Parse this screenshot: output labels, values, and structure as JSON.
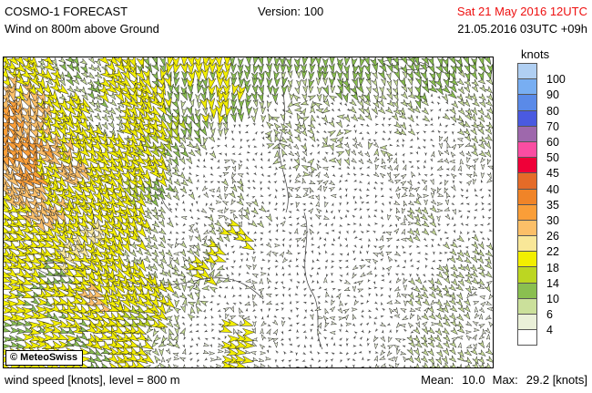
{
  "header": {
    "title": "COSMO-1 FORECAST",
    "subtitle": "Wind on 800m above Ground",
    "version": "Version: 100",
    "valid_date": "Sat 21 May 2016 12UTC",
    "valid_date_color": "#ee1010",
    "run_info": "21.05.2016 03UTC +09h"
  },
  "legend": {
    "title": "knots",
    "entries": [
      {
        "color": "#b0cff2",
        "label": "100"
      },
      {
        "color": "#78aef2",
        "label": "90"
      },
      {
        "color": "#5a8ae8",
        "label": "80"
      },
      {
        "color": "#4a5ae0",
        "label": "70"
      },
      {
        "color": "#9e68ac",
        "label": "60"
      },
      {
        "color": "#fa4da2",
        "label": "50"
      },
      {
        "color": "#ef0038",
        "label": "45"
      },
      {
        "color": "#e56b28",
        "label": "40"
      },
      {
        "color": "#f08428",
        "label": "35"
      },
      {
        "color": "#fa9e38",
        "label": "30"
      },
      {
        "color": "#fcbf68",
        "label": "26"
      },
      {
        "color": "#f9e798",
        "label": "22"
      },
      {
        "color": "#f2ee00",
        "label": "18"
      },
      {
        "color": "#bcd622",
        "label": "14"
      },
      {
        "color": "#8abf50",
        "label": "10"
      },
      {
        "color": "#cbe09b",
        "label": "6"
      },
      {
        "color": "#eaf0d8",
        "label": "4"
      },
      {
        "color": "#ffffff",
        "label": ""
      }
    ]
  },
  "map": {
    "copyright": "© MeteoSwiss",
    "background": "#ffffff",
    "border_color": "#000000",
    "line_color": "#3c3c3c",
    "palette": {
      "W": "#4a4a4a",
      "p": "#eaf0d8",
      "g": "#cbe09b",
      "G": "#8abf50",
      "L": "#bcd622",
      "Y": "#f2ee00",
      "P": "#f9e798",
      "T": "#fcbf68",
      "O": "#fa9e38"
    },
    "sizes": {
      "W": 4.2,
      "p": 6,
      "g": 8,
      "G": 10,
      "L": 11.5,
      "Y": 13,
      "P": 13.5,
      "T": 14.5,
      "O": 15.5
    },
    "dir_angles": {
      "0": 8,
      "1": 28,
      "2": 48,
      "3": 68,
      "4": 90
    },
    "grid": {
      "cols": 24,
      "rows": 15,
      "speed": [
        "YYgGgYYGYYYGGGGGGGGGGGGG",
        "TYYgGYYYGGYYGGggGGggGGgg",
        "OTYYggYYGgYGgWggWggggWgg",
        "OTYYYgYYLGgWWggWgWWgWWgg",
        "OOTYYYYLGgWWWgpWgpgWWppg",
        "TOYTYYYYgWWpWWgpWWppWWpp",
        "TTYYYYLGgWpgWWppWWWpppWW",
        "YTTYYYYgWWppgWWpWWWpgpWW",
        "YYYYPYYgWpgYWWpWWWWpgWWW",
        "YYYPYYggpgYWWpWWWWpWWWgg",
        "YYGYYYYggYgWpWWWWpWWWggg",
        "YGYYTYYYggWWpWWWpWWpgggp",
        "YYGYYYLYgWWpWWWppWWppggp",
        "GYYGYYYggWWYppWWWWpWggpp",
        "YYYYGYYgpWpYpWWWWWppgggg"
      ],
      "dir": [
        "222222334444444444333333",
        "322222234444444433333222",
        "33222222344443rr22222r22",
        "3322222233 44rr22rrr2rr22",
        "3322222222rrrr2rr2rrrrr2",
        "222222222rrr2rrrrrrrrrrr",
        "222222222rr2rrrrrrrrrrrr",
        "12222222rrrr2rrrrrrr2rrr",
        "11222222rr21rrrrrrrr2rrr",
        "11122222r21rrrrrrrrrrr22",
        "1111222221rrrrrrrrrrr222",
        "011112222rrrrrrrrrrr222r",
        "00111111rrrrrrrrrrrrr22r",
        "0001111rrrr0rrrrrrrr22rr",
        "0000111rrr000rrrrrrr2222"
      ]
    },
    "overlays": [
      "M310,0 C300,30 315,55 305,85 C295,115 320,140 310,170",
      "M150,30 C160,60 140,85 160,110 C175,130 165,155 185,170",
      "M85,225 C120,250 170,255 210,245 C250,235 270,250 285,265",
      "M330,170 C340,200 320,230 340,260 C350,280 340,300 350,320",
      "M35,230 C50,222 75,225 90,235 C75,243 48,242 35,230 Z",
      "M415,5 C430,0 455,2 468,10 C452,16 428,14 415,5 Z",
      "M60,120 C80,140 70,170 90,190"
    ]
  },
  "footer": {
    "left": "wind speed [knots], level = 800 m",
    "mean_label": "Mean:",
    "mean_value": "10.0",
    "max_label": "Max:",
    "max_value": "29.2 [knots]"
  }
}
